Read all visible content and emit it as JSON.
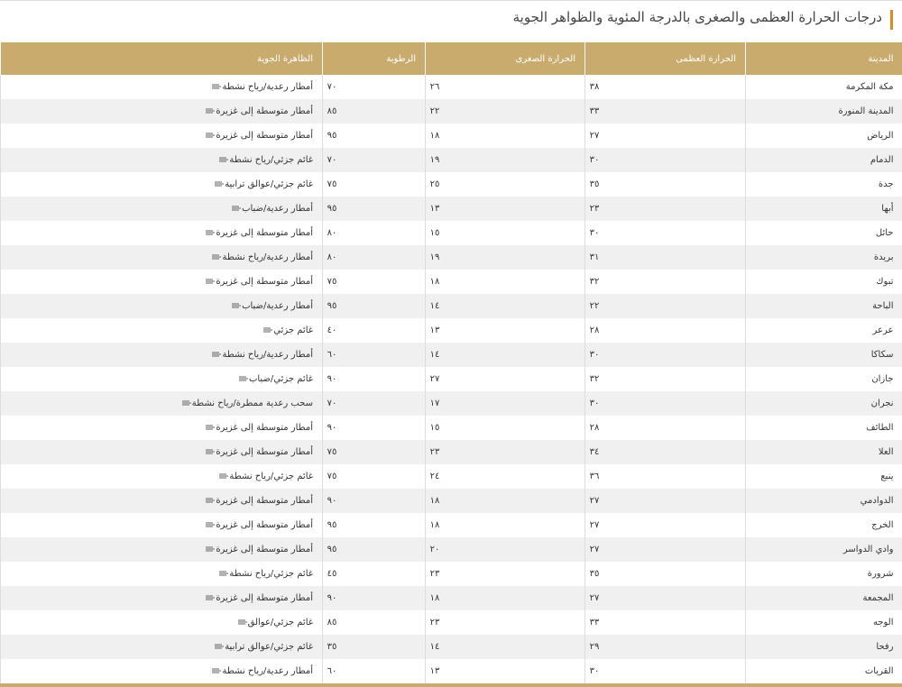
{
  "title": "درجات الحرارة العظمى والصغرى بالدرجة المئوية والظواهر الجوية",
  "table": {
    "header": [
      "المدينة",
      "الحرارة العظمى",
      "الحرارة الصغرى",
      "الرطوبة",
      "الظاهرة الجوية"
    ],
    "rows": [
      [
        "مكة المكرمة",
        "٣٨",
        "٢٦",
        "٧٠",
        "أمطار رعدية/رياح نشطة"
      ],
      [
        "المدينة المنورة",
        "٣٣",
        "٢٢",
        "٨٥",
        "أمطار متوسطة إلى غزيرة"
      ],
      [
        "الرياض",
        "٢٧",
        "١٨",
        "٩٥",
        "أمطار متوسطة إلى غزيرة"
      ],
      [
        "الدمام",
        "٣٠",
        "١٩",
        "٧٠",
        "غائم جزئي/رياح نشطة"
      ],
      [
        "جدة",
        "٣٥",
        "٢٥",
        "٧٥",
        "غائم جزئي/عوالق ترابية"
      ],
      [
        "أبها",
        "٢٣",
        "١٣",
        "٩٥",
        "أمطار رعدية/ضباب"
      ],
      [
        "حائل",
        "٣٠",
        "١٥",
        "٨٠",
        "أمطار متوسطة إلى غزيرة"
      ],
      [
        "بريدة",
        "٣١",
        "١٩",
        "٨٠",
        "أمطار رعدية/رياح نشطة"
      ],
      [
        "تبوك",
        "٣٢",
        "١٨",
        "٧٥",
        "أمطار متوسطة إلى غزيرة"
      ],
      [
        "الباحة",
        "٢٢",
        "١٤",
        "٩٥",
        "أمطار رعدية/ضباب"
      ],
      [
        "عرعر",
        "٢٨",
        "١٣",
        "٤٠",
        "غائم جزئي"
      ],
      [
        "سكاكا",
        "٣٠",
        "١٤",
        "٦٠",
        "أمطار رعدية/رياح نشطة"
      ],
      [
        "جازان",
        "٣٢",
        "٢٧",
        "٩٠",
        "غائم جزئي/ضباب"
      ],
      [
        "نجران",
        "٣٠",
        "١٧",
        "٧٠",
        "سحب رعدية ممطرة/رياح نشطة"
      ],
      [
        "الطائف",
        "٢٨",
        "١٥",
        "٩٠",
        "أمطار متوسطة إلى غزيرة"
      ],
      [
        "العلا",
        "٣٤",
        "٢٣",
        "٧٥",
        "أمطار متوسطة إلى غزيرة"
      ],
      [
        "ينبع",
        "٣٦",
        "٢٤",
        "٧٥",
        "غائم جزئي/رياح نشطة"
      ],
      [
        "الدوادمي",
        "٢٧",
        "١٨",
        "٩٠",
        "أمطار متوسطة إلى غزيرة"
      ],
      [
        "الخرج",
        "٢٧",
        "١٨",
        "٩٥",
        "أمطار متوسطة إلى غزيرة"
      ],
      [
        "وادي الدواسر",
        "٢٧",
        "٢٠",
        "٩٥",
        "أمطار متوسطة إلى غزيرة"
      ],
      [
        "شرورة",
        "٣٥",
        "٢٣",
        "٤٥",
        "غائم جزئي/رياح نشطة"
      ],
      [
        "المجمعة",
        "٢٧",
        "١٨",
        "٩٠",
        "أمطار متوسطة إلى غزيرة"
      ],
      [
        "الوجه",
        "٣٣",
        "٢٣",
        "٨٥",
        "غائم جزئي/عوالق"
      ],
      [
        "رفحا",
        "٢٩",
        "١٤",
        "٣٥",
        "غائم جزئي/عوالق ترابية"
      ],
      [
        "القريات",
        "٣٠",
        "١٣",
        "٦٠",
        "أمطار رعدية/رياح نشطة"
      ]
    ]
  }
}
